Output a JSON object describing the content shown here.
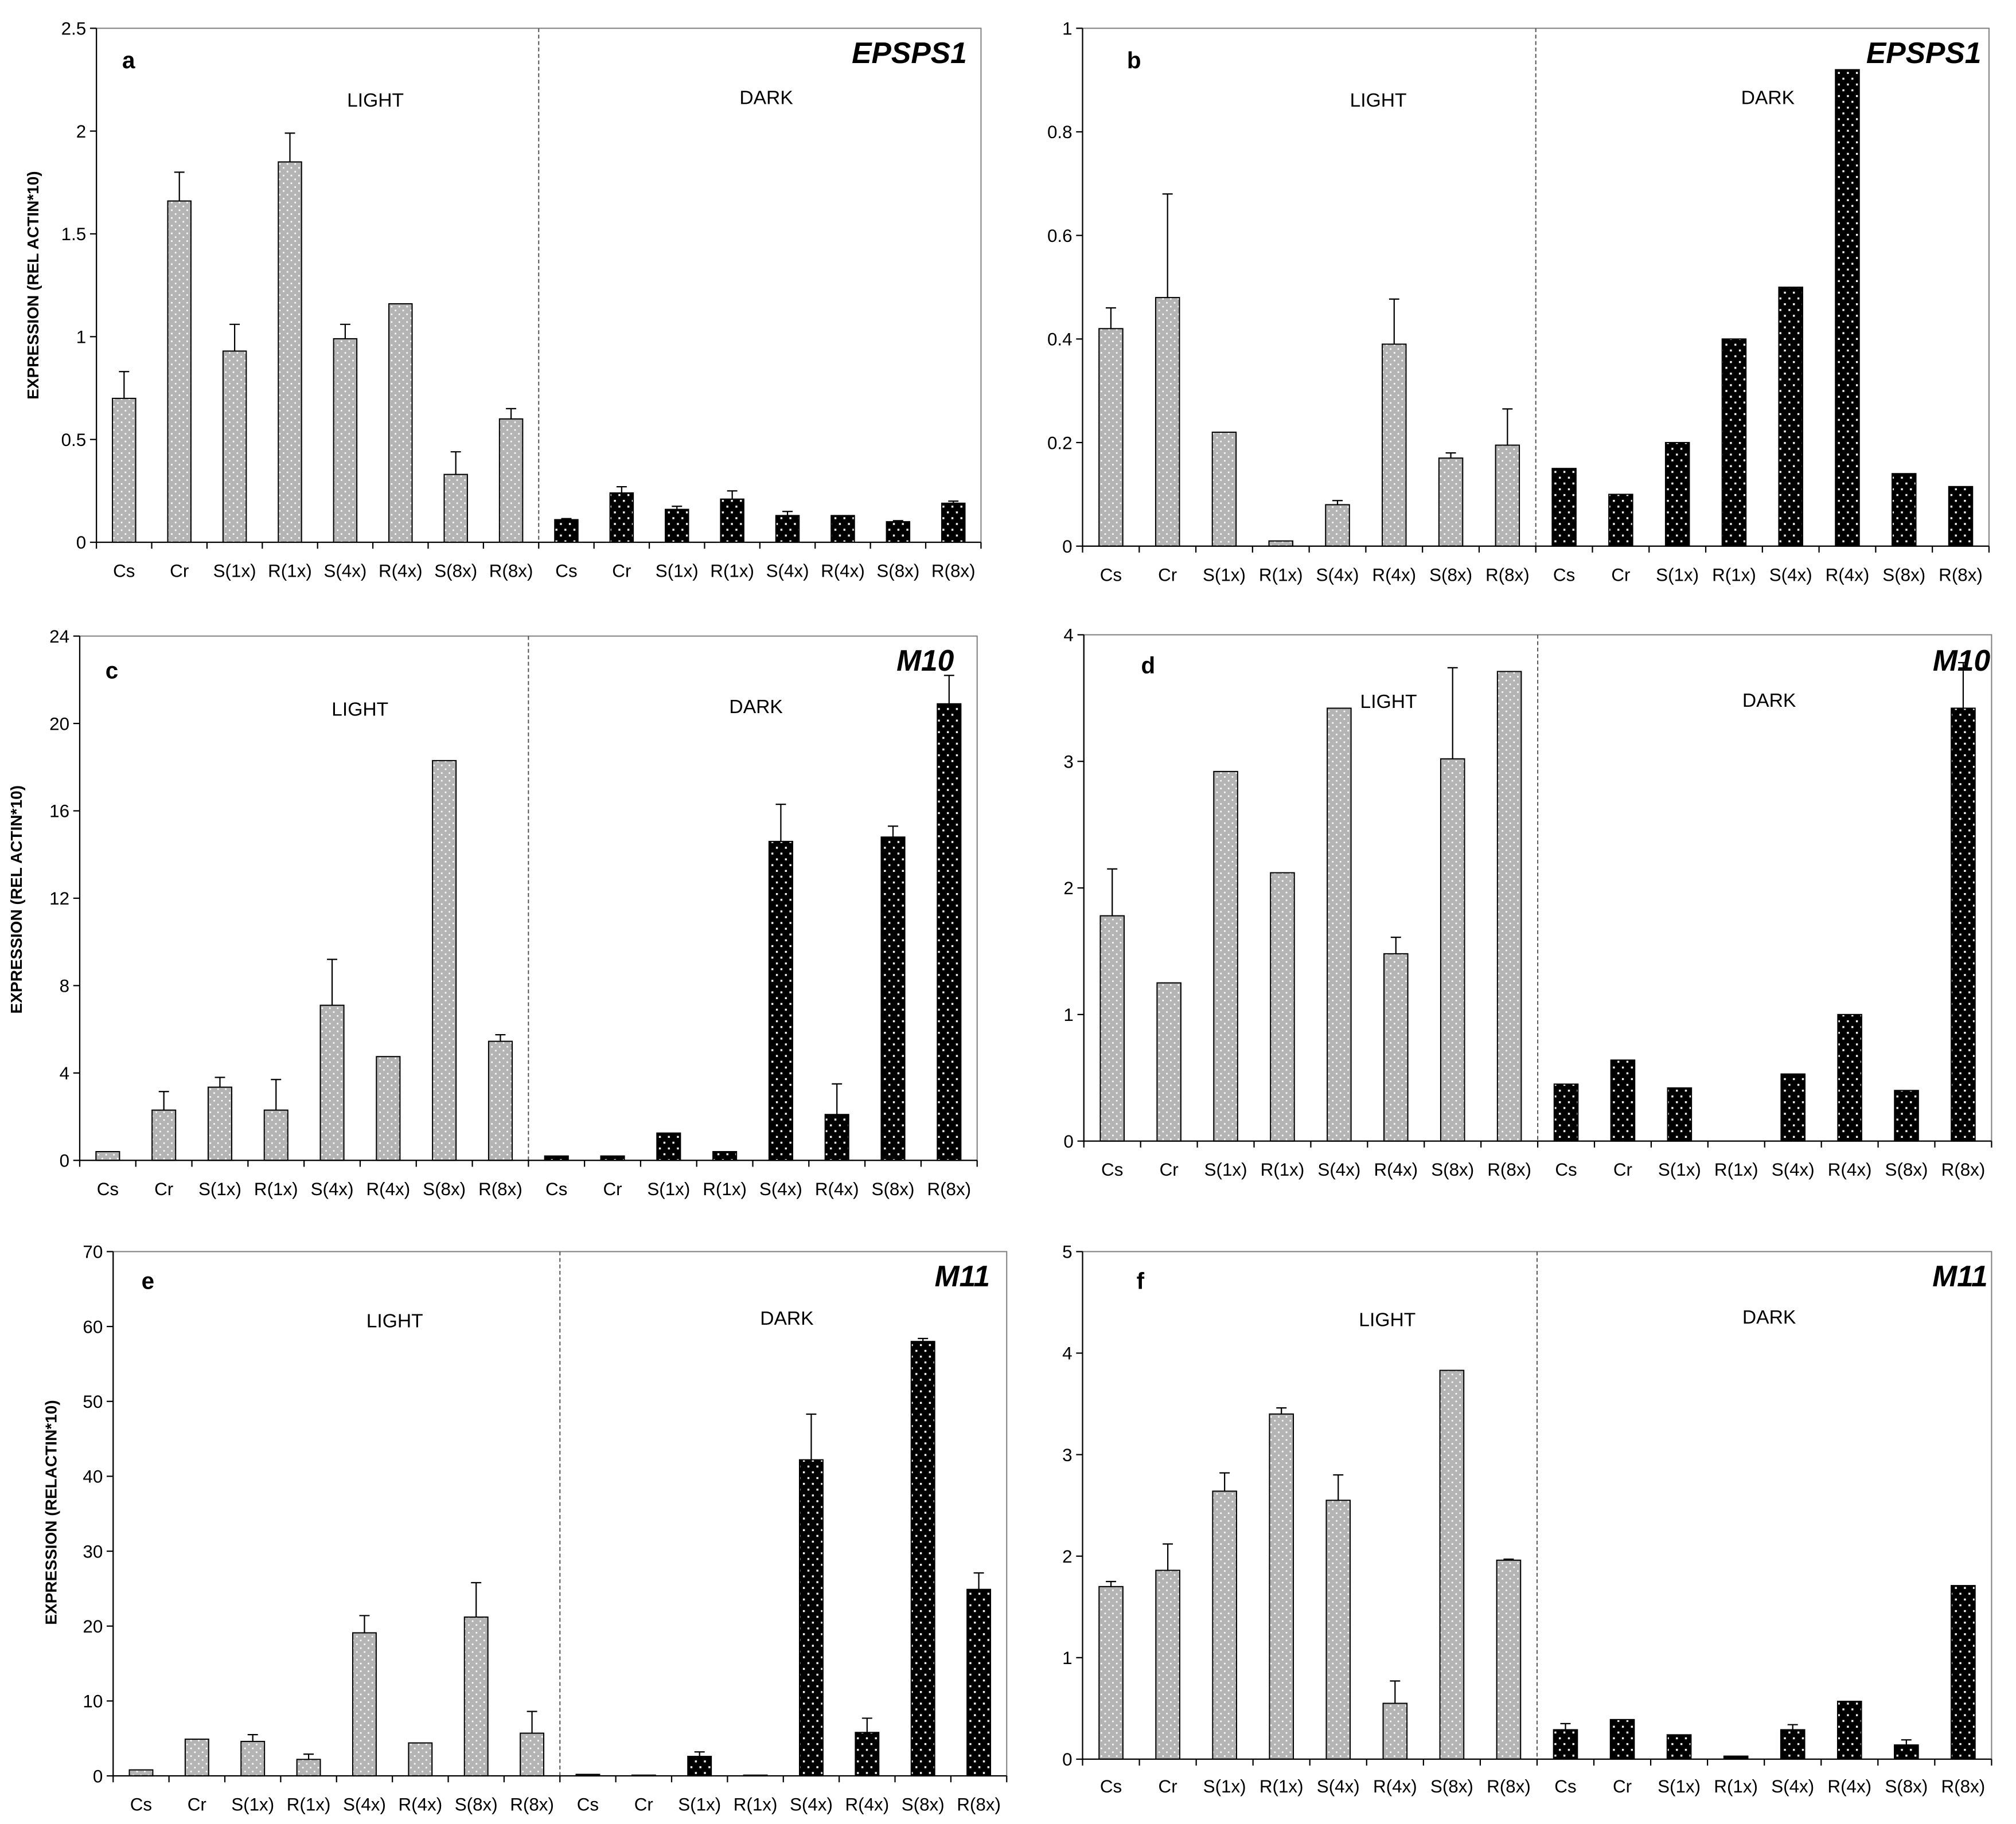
{
  "colors": {
    "light_bar": "#b4b4b4",
    "dark_bar": "#000000",
    "dot": "#ffffff",
    "axis": "#000000",
    "frame": "#808080",
    "divider": "#555555"
  },
  "chart_data": [
    {
      "panel": "a",
      "title": "EPSPS1",
      "type": "bar",
      "ylabel": "EXPRESSION (REL ACTIN*10)",
      "ylim": [
        0,
        2.5
      ],
      "yticks": [
        "0",
        "0.5",
        "1",
        "1.5",
        "2",
        "2.5"
      ],
      "categories": [
        "Cs",
        "Cr",
        "S(1x)",
        "R(1x)",
        "S(4x)",
        "R(4x)",
        "S(8x)",
        "R(8x)"
      ],
      "series": [
        {
          "name": "LIGHT",
          "values": [
            0.7,
            1.66,
            0.93,
            1.85,
            0.99,
            1.16,
            0.33,
            0.6
          ],
          "error": [
            0.13,
            0.14,
            0.13,
            0.14,
            0.07,
            0,
            0.11,
            0.05
          ]
        },
        {
          "name": "DARK",
          "values": [
            0.11,
            0.24,
            0.16,
            0.21,
            0.13,
            0.13,
            0.1,
            0.19
          ],
          "error": [
            0.005,
            0.03,
            0.015,
            0.04,
            0.02,
            0,
            0.005,
            0.01
          ]
        }
      ]
    },
    {
      "panel": "b",
      "title": "EPSPS1",
      "type": "bar",
      "ylim": [
        0,
        1
      ],
      "yticks": [
        "0",
        "0.2",
        "0.4",
        "0.6",
        "0.8",
        "1"
      ],
      "categories": [
        "Cs",
        "Cr",
        "S(1x)",
        "R(1x)",
        "S(4x)",
        "R(4x)",
        "S(8x)",
        "R(8x)"
      ],
      "series": [
        {
          "name": "LIGHT",
          "values": [
            0.42,
            0.48,
            0.22,
            0.01,
            0.08,
            0.39,
            0.17,
            0.195
          ],
          "error": [
            0.04,
            0.2,
            0,
            0,
            0.008,
            0.087,
            0.01,
            0.07
          ]
        },
        {
          "name": "DARK",
          "values": [
            0.15,
            0.1,
            0.2,
            0.4,
            0.5,
            0.92,
            0.14,
            0.115
          ],
          "error": [
            0,
            0,
            0,
            0,
            0,
            0,
            0,
            0
          ]
        }
      ]
    },
    {
      "panel": "c",
      "title": "M10",
      "type": "bar",
      "ylabel": "EXPRESSION (REL ACTIN*10)",
      "ylim": [
        0,
        24
      ],
      "yticks": [
        "0",
        "4",
        "8",
        "12",
        "16",
        "20",
        "24"
      ],
      "categories": [
        "Cs",
        "Cr",
        "S(1x)",
        "R(1x)",
        "S(4x)",
        "R(4x)",
        "S(8x)",
        "R(8x)"
      ],
      "series": [
        {
          "name": "LIGHT",
          "values": [
            0.4,
            2.3,
            3.35,
            2.3,
            7.1,
            4.75,
            18.3,
            5.45
          ],
          "error": [
            0,
            0.85,
            0.45,
            1.4,
            2.1,
            0,
            0,
            0.3
          ]
        },
        {
          "name": "DARK",
          "values": [
            0.2,
            0.2,
            1.25,
            0.4,
            14.6,
            2.1,
            14.8,
            20.9
          ],
          "error": [
            0,
            0,
            0,
            0,
            1.7,
            1.4,
            0.5,
            1.3
          ]
        }
      ]
    },
    {
      "panel": "d",
      "title": "M10",
      "type": "bar",
      "ylim": [
        0,
        4
      ],
      "yticks": [
        "0",
        "1",
        "2",
        "3",
        "4"
      ],
      "categories": [
        "Cs",
        "Cr",
        "S(1x)",
        "R(1x)",
        "S(4x)",
        "R(4x)",
        "S(8x)",
        "R(8x)"
      ],
      "series": [
        {
          "name": "LIGHT",
          "values": [
            1.78,
            1.25,
            2.92,
            2.12,
            3.42,
            1.48,
            3.02,
            3.71
          ],
          "error": [
            0.37,
            0,
            0,
            0,
            0,
            0.13,
            0.72,
            0
          ]
        },
        {
          "name": "DARK",
          "values": [
            0.45,
            0.64,
            0.42,
            0,
            0.53,
            1.0,
            0.4,
            3.42
          ],
          "error": [
            0,
            0,
            0,
            0,
            0,
            0,
            0,
            0.36
          ]
        }
      ]
    },
    {
      "panel": "e",
      "title": "M11",
      "type": "bar",
      "ylabel": "EXPRESSION (RELACTIN*10)",
      "ylim": [
        0,
        70
      ],
      "yticks": [
        "0",
        "10",
        "20",
        "30",
        "40",
        "50",
        "60",
        "70"
      ],
      "categories": [
        "Cs",
        "Cr",
        "S(1x)",
        "R(1x)",
        "S(4x)",
        "R(4x)",
        "S(8x)",
        "R(8x)"
      ],
      "series": [
        {
          "name": "LIGHT",
          "values": [
            0.8,
            4.9,
            4.6,
            2.2,
            19.1,
            4.4,
            21.2,
            5.7
          ],
          "error": [
            0,
            0,
            0.9,
            0.7,
            2.3,
            0,
            4.6,
            2.9
          ]
        },
        {
          "name": "DARK",
          "values": [
            0.2,
            0.1,
            2.6,
            0.1,
            42.2,
            5.8,
            58.0,
            24.9
          ],
          "error": [
            0,
            0,
            0.6,
            0,
            6.1,
            1.9,
            0.4,
            2.2
          ]
        }
      ]
    },
    {
      "panel": "f",
      "title": "M11",
      "type": "bar",
      "ylim": [
        0,
        5
      ],
      "yticks": [
        "0",
        "1",
        "2",
        "3",
        "4",
        "5"
      ],
      "categories": [
        "Cs",
        "Cr",
        "S(1x)",
        "R(1x)",
        "S(4x)",
        "R(4x)",
        "S(8x)",
        "R(8x)"
      ],
      "series": [
        {
          "name": "LIGHT",
          "values": [
            1.7,
            1.86,
            2.64,
            3.4,
            2.55,
            0.55,
            3.83,
            1.96
          ],
          "error": [
            0.05,
            0.26,
            0.18,
            0.06,
            0.25,
            0.22,
            0,
            0.01
          ]
        },
        {
          "name": "DARK",
          "values": [
            0.29,
            0.39,
            0.24,
            0.03,
            0.29,
            0.57,
            0.14,
            1.71
          ],
          "error": [
            0.06,
            0,
            0,
            0,
            0.05,
            0,
            0.05,
            0
          ]
        }
      ]
    }
  ]
}
